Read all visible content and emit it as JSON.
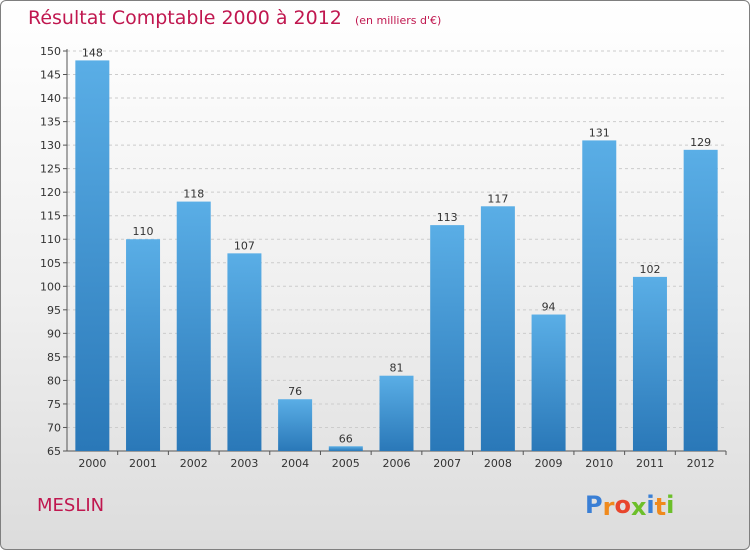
{
  "title": "Résultat Comptable 2000 à 2012",
  "subtitle": "(en milliers d'€)",
  "commune": "MESLIN",
  "logo": {
    "text": "Proxiti",
    "letters": [
      "P",
      "r",
      "o",
      "x",
      "i",
      "t",
      "i"
    ],
    "colors": [
      "#3a7fd5",
      "#f08a1c",
      "#e8452c",
      "#6cbf2a",
      "#3a7fd5",
      "#f08a1c",
      "#6cbf2a"
    ]
  },
  "colors": {
    "title": "#c0174f",
    "bar_top": "#5aaee6",
    "bar_bottom": "#2a78b8",
    "grid": "#cccccc"
  },
  "chart_data": {
    "type": "bar",
    "categories": [
      "2000",
      "2001",
      "2002",
      "2003",
      "2004",
      "2005",
      "2006",
      "2007",
      "2008",
      "2009",
      "2010",
      "2011",
      "2012"
    ],
    "values": [
      148,
      110,
      118,
      107,
      76,
      66,
      81,
      113,
      117,
      94,
      131,
      102,
      129
    ],
    "ylim": [
      65,
      150
    ],
    "yticks": [
      65,
      70,
      75,
      80,
      85,
      90,
      95,
      100,
      105,
      110,
      115,
      120,
      125,
      130,
      135,
      140,
      145,
      150
    ],
    "grid": "horizontal dashed",
    "data_labels": true
  }
}
